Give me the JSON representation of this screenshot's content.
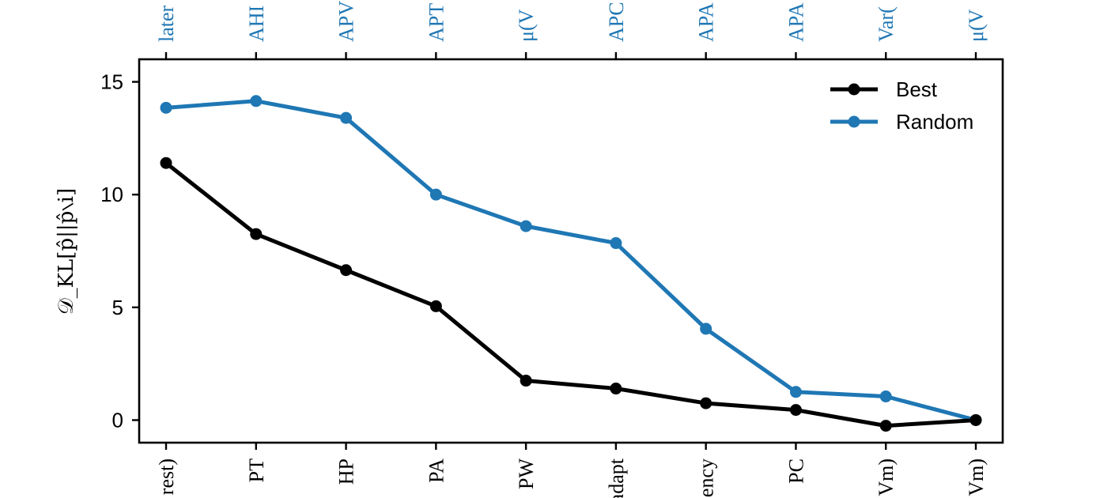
{
  "chart_data": {
    "type": "line",
    "ylabel": "𝒟_KL[p̂||p̂∖i]",
    "ylim": [
      -1.0,
      16.0
    ],
    "yticks": [
      0,
      5,
      10,
      15
    ],
    "ytick_labels": [
      "0",
      "5",
      "10",
      "15"
    ],
    "grid": false,
    "legend_position": "top-right",
    "top_tick_labels": [
      "later",
      "AHI",
      "APV",
      "APT",
      "μ(V",
      "APC",
      "APA",
      "APA",
      "Var(",
      "μ(V"
    ],
    "bottom_tick_labels": [
      "rest)",
      "PT",
      "HP",
      "PA",
      "PW",
      "adapt",
      "ency",
      "PC",
      "Vm)",
      "Vm)"
    ],
    "series": [
      {
        "name": "Best",
        "color": "#000000",
        "values": [
          11.4,
          8.25,
          6.65,
          5.05,
          1.75,
          1.4,
          0.75,
          0.45,
          -0.25,
          0.0
        ]
      },
      {
        "name": "Random",
        "color": "#1f77b4",
        "values": [
          13.85,
          14.15,
          13.4,
          10.0,
          8.6,
          7.85,
          4.05,
          1.25,
          1.05,
          0.0
        ]
      }
    ]
  }
}
